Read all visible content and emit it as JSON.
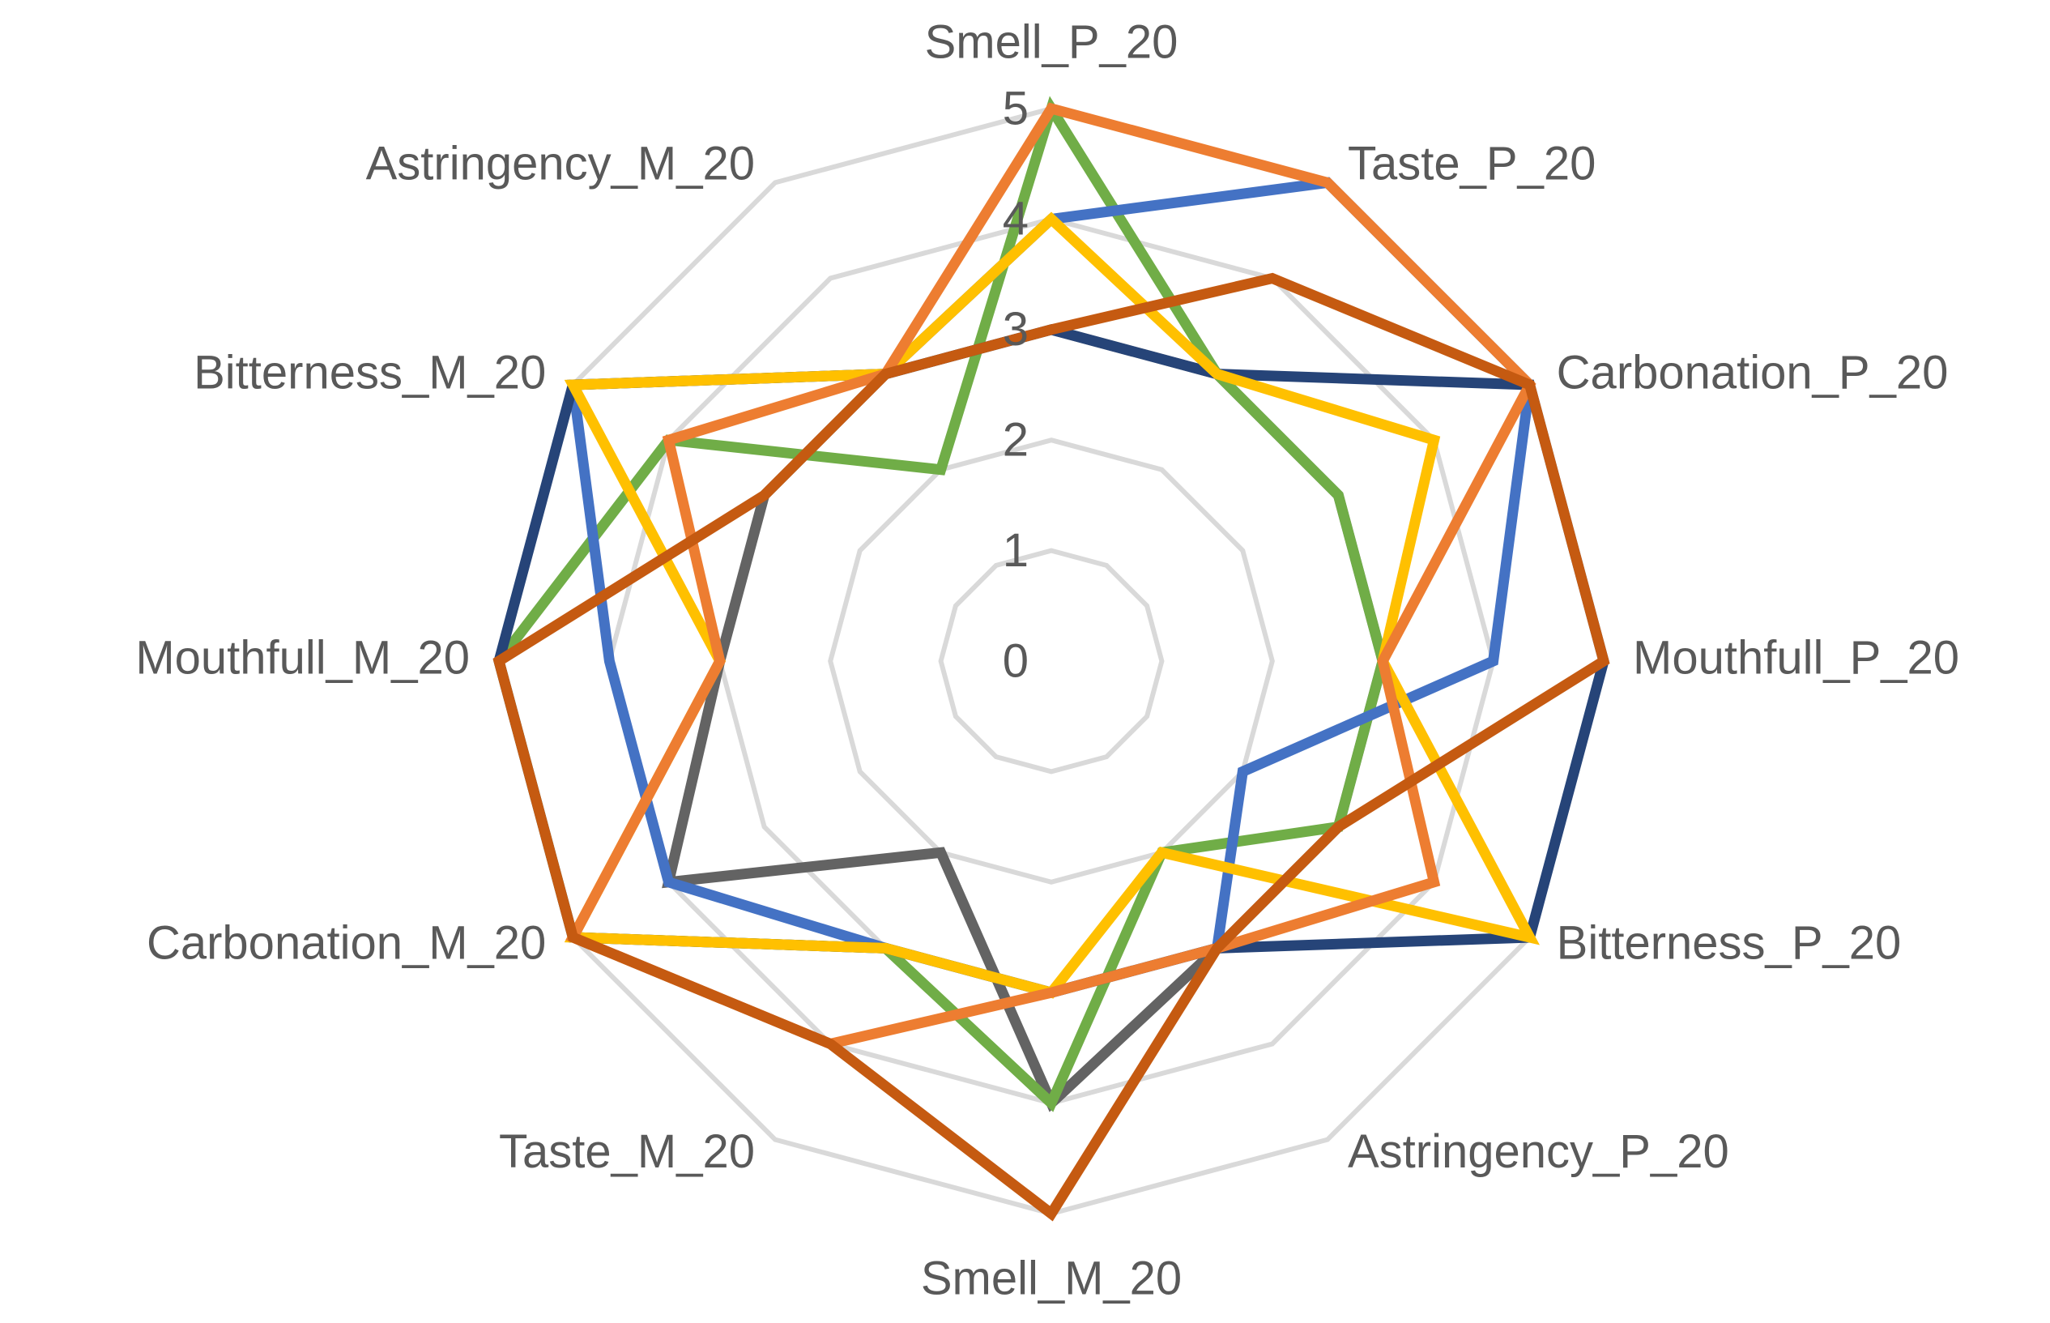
{
  "chart_data": {
    "type": "radar",
    "categories": [
      "Smell_P_20",
      "Taste_P_20",
      "Carbonation_P_20",
      "Mouthfull_P_20",
      "Bitterness_P_20",
      "Astringency_P_20",
      "Smell_M_20",
      "Taste_M_20",
      "Carbonation_M_20",
      "Mouthfull_M_20",
      "Bitterness_M_20",
      "Astringency_M_20"
    ],
    "ylim": [
      0,
      5
    ],
    "yticks": [
      0,
      1,
      2,
      3,
      4,
      5
    ],
    "grid": true,
    "grid_color": "#d9d9d9",
    "series": [
      {
        "color": "#636363",
        "values": [
          3,
          3,
          3,
          3,
          3,
          3,
          4,
          2,
          4,
          3,
          3,
          3
        ]
      },
      {
        "color": "#70ad47",
        "values": [
          5,
          3,
          3,
          3,
          3,
          2,
          4,
          3,
          5,
          5,
          4,
          2
        ]
      },
      {
        "color": "#4472c4",
        "values": [
          4,
          5,
          5,
          4,
          2,
          3,
          3,
          3,
          4,
          4,
          5,
          3
        ]
      },
      {
        "color": "#264478",
        "values": [
          3,
          3,
          5,
          5,
          5,
          3,
          3,
          3,
          5,
          5,
          5,
          3
        ]
      },
      {
        "color": "#ffc000",
        "values": [
          4,
          3,
          4,
          3,
          5,
          2,
          3,
          3,
          5,
          3,
          5,
          3
        ]
      },
      {
        "color": "#ed7d31",
        "values": [
          5,
          5,
          5,
          3,
          4,
          3,
          3,
          4,
          5,
          3,
          4,
          3
        ]
      },
      {
        "color": "#c55a11",
        "values": [
          3,
          4,
          5,
          5,
          3,
          3,
          5,
          4,
          5,
          5,
          3,
          3
        ]
      }
    ]
  }
}
